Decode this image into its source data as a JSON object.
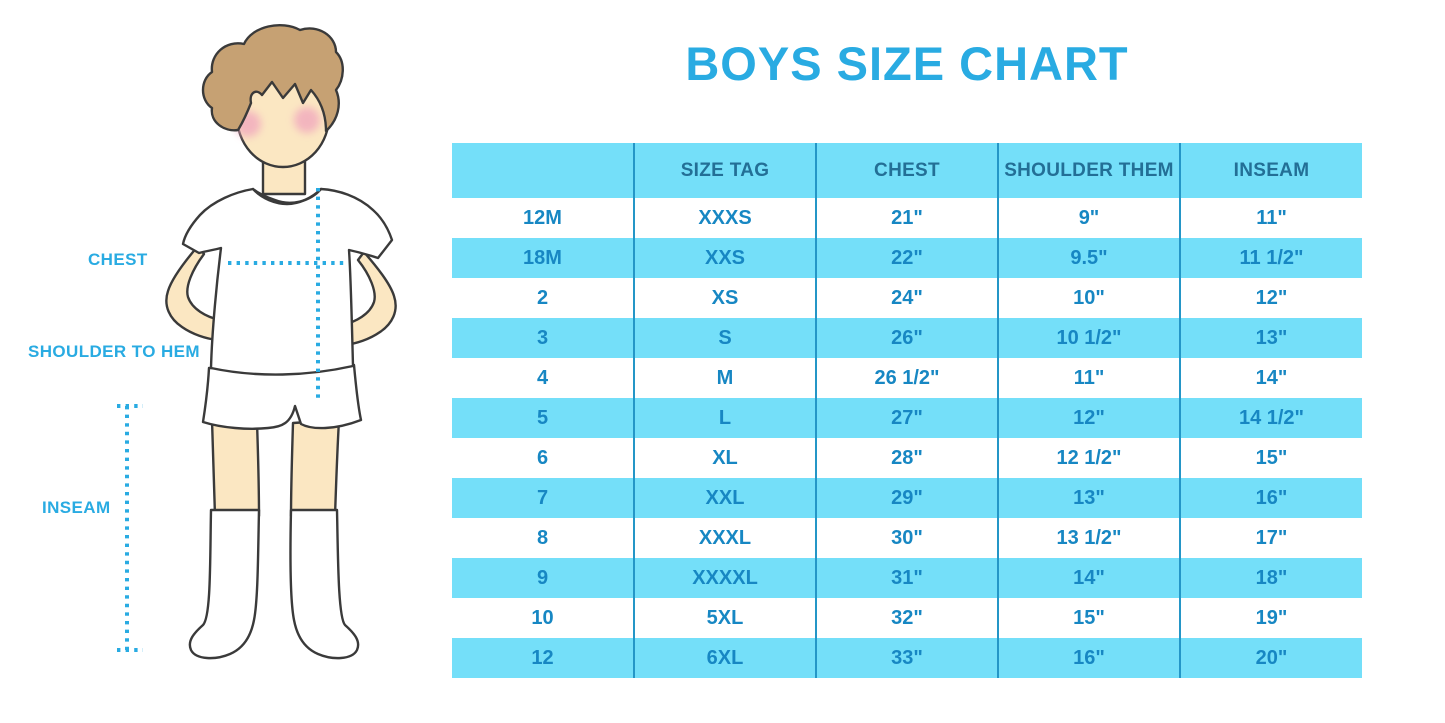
{
  "title": "BOYS SIZE CHART",
  "colors": {
    "accent": "#29ABE2",
    "table_band": "#74DFF9",
    "table_divider": "#2496C7",
    "cell_text": "#1787C3",
    "header_text": "#236F96"
  },
  "figure": {
    "labels": {
      "chest": "CHEST",
      "shoulder_to_hem": "SHOULDER TO HEM",
      "inseam": "INSEAM"
    }
  },
  "chart_data": {
    "type": "table",
    "title": "BOYS SIZE CHART",
    "columns": [
      "",
      "SIZE TAG",
      "CHEST",
      "SHOULDER THEM",
      "INSEAM"
    ],
    "rows": [
      [
        "12M",
        "XXXS",
        "21\"",
        "9\"",
        "11\""
      ],
      [
        "18M",
        "XXS",
        "22\"",
        "9.5\"",
        "11 1/2\""
      ],
      [
        "2",
        "XS",
        "24\"",
        "10\"",
        "12\""
      ],
      [
        "3",
        "S",
        "26\"",
        "10 1/2\"",
        "13\""
      ],
      [
        "4",
        "M",
        "26 1/2\"",
        "11\"",
        "14\""
      ],
      [
        "5",
        "L",
        "27\"",
        "12\"",
        "14 1/2\""
      ],
      [
        "6",
        "XL",
        "28\"",
        "12 1/2\"",
        "15\""
      ],
      [
        "7",
        "XXL",
        "29\"",
        "13\"",
        "16\""
      ],
      [
        "8",
        "XXXL",
        "30\"",
        "13 1/2\"",
        "17\""
      ],
      [
        "9",
        "XXXXL",
        "31\"",
        "14\"",
        "18\""
      ],
      [
        "10",
        "5XL",
        "32\"",
        "15\"",
        "19\""
      ],
      [
        "12",
        "6XL",
        "33\"",
        "16\"",
        "20\""
      ]
    ],
    "layout": {
      "banding": "alternate-rows",
      "band_rows": "even",
      "grid": "vertical-dividers-only"
    }
  }
}
